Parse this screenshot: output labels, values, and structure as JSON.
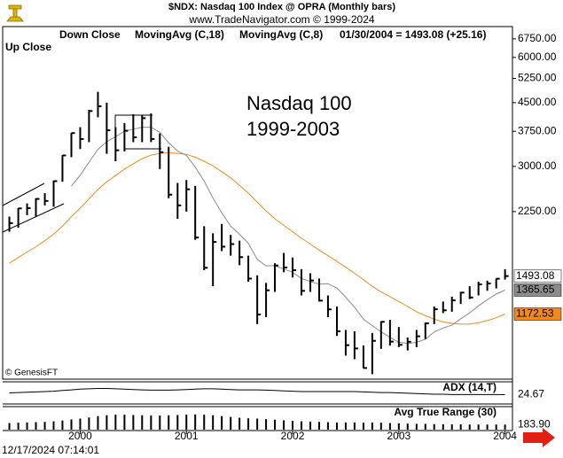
{
  "chart_data": {
    "type": "hlc",
    "title": "$NDX:  Nasdaq 100 Index @ OPRA  (Monthly bars)",
    "subtitle": "www.TradeNavigator.com © 1999-2024",
    "header_info": "01/30/2004 = 1493.08 (+25.16)",
    "down_label": "Down Close",
    "up_label": "Up Close",
    "annotations": [
      "Nasdaq 100",
      "1999-2003"
    ],
    "source": "© GenesisFT",
    "timestamp": "12/17/2024 07:14:01",
    "log_scale": true,
    "bar_color": "#000000",
    "x": [
      1999.333,
      1999.417,
      1999.5,
      1999.583,
      1999.667,
      1999.75,
      1999.833,
      1999.917,
      2000,
      2000.083,
      2000.167,
      2000.25,
      2000.333,
      2000.417,
      2000.5,
      2000.583,
      2000.667,
      2000.75,
      2000.833,
      2000.917,
      2001,
      2001.083,
      2001.167,
      2001.25,
      2001.333,
      2001.417,
      2001.5,
      2001.583,
      2001.667,
      2001.75,
      2001.833,
      2001.917,
      2002,
      2002.083,
      2002.167,
      2002.25,
      2002.333,
      2002.417,
      2002.5,
      2002.583,
      2002.667,
      2002.75,
      2002.833,
      2002.917,
      2003,
      2003.083,
      2003.167,
      2003.25,
      2003.333,
      2003.417,
      2003.5,
      2003.583,
      2003.667,
      2003.75,
      2003.833,
      2003.917,
      2004
    ],
    "high": [
      2180,
      2300,
      2370,
      2450,
      2530,
      2740,
      3220,
      3710,
      3850,
      4300,
      4820,
      4500,
      3850,
      3950,
      4180,
      4150,
      4200,
      3700,
      3400,
      2700,
      2750,
      2650,
      2050,
      1960,
      2080,
      1940,
      1870,
      1700,
      1500,
      1430,
      1620,
      1730,
      1680,
      1560,
      1520,
      1470,
      1320,
      1230,
      1060,
      1050,
      960,
      1040,
      1120,
      1130,
      1080,
      1010,
      1060,
      1110,
      1230,
      1270,
      1310,
      1350,
      1400,
      1440,
      1450,
      1470,
      1560
    ],
    "low": [
      1980,
      2030,
      2200,
      2180,
      2340,
      2320,
      2720,
      3180,
      3350,
      3500,
      4100,
      3250,
      3100,
      3300,
      3500,
      3500,
      3500,
      2950,
      2450,
      2150,
      2250,
      1880,
      1550,
      1400,
      1750,
      1700,
      1600,
      1440,
      1100,
      1150,
      1350,
      1530,
      1480,
      1320,
      1350,
      1270,
      1150,
      1020,
      900,
      880,
      830,
      800,
      940,
      960,
      950,
      930,
      950,
      1000,
      1100,
      1180,
      1190,
      1250,
      1290,
      1320,
      1360,
      1380,
      1460
    ],
    "close": [
      2091,
      2296,
      2300,
      2439,
      2408,
      2731,
      3216,
      3708,
      3570,
      4266,
      4398,
      3774,
      3324,
      3763,
      3609,
      4077,
      3571,
      3283,
      2506,
      2341,
      2593,
      1908,
      1574,
      1855,
      1800,
      1830,
      1684,
      1469,
      1169,
      1364,
      1597,
      1577,
      1550,
      1359,
      1452,
      1277,
      1208,
      1051,
      962,
      942,
      832,
      989,
      1116,
      984,
      964,
      983,
      1018,
      1106,
      1209,
      1201,
      1280,
      1344,
      1303,
      1416,
      1424,
      1468,
      1493.08
    ],
    "series": [
      {
        "name": "MovingAvg (C,18)",
        "color": "#f0891e",
        "label_text_color": "#ffffff",
        "values": [
          1620,
          1680,
          1740,
          1800,
          1870,
          1950,
          2050,
          2180,
          2300,
          2440,
          2590,
          2720,
          2830,
          2950,
          3050,
          3150,
          3220,
          3260,
          3270,
          3260,
          3240,
          3180,
          3100,
          3010,
          2900,
          2790,
          2660,
          2530,
          2390,
          2260,
          2150,
          2060,
          1980,
          1900,
          1830,
          1760,
          1700,
          1640,
          1580,
          1520,
          1460,
          1400,
          1350,
          1310,
          1270,
          1230,
          1190,
          1160,
          1135,
          1115,
          1105,
          1100,
          1100,
          1110,
          1125,
          1145,
          1172.53
        ]
      },
      {
        "name": "MovingAvg (C,8)",
        "color": "#8c8c8c",
        "label_text_color": "#000000",
        "values": [
          null,
          null,
          null,
          null,
          null,
          null,
          null,
          2649,
          2834,
          3080,
          3342,
          3509,
          3623,
          3752,
          3802,
          3848,
          3848,
          3725,
          3488,
          3309,
          3218,
          2986,
          2732,
          2454,
          2233,
          2051,
          1948,
          1839,
          1661,
          1593,
          1596,
          1561,
          1530,
          1471,
          1442,
          1418,
          1423,
          1384,
          1305,
          1225,
          1135,
          1089,
          1047,
          1011,
          980,
          972,
          979,
          999,
          1046,
          1073,
          1093,
          1138,
          1181,
          1235,
          1285,
          1331,
          1365.65
        ]
      }
    ],
    "xlim": [
      1999.27,
      2004.07
    ],
    "xticks": [
      2000,
      2001,
      2002,
      2003,
      2004
    ],
    "ylim": [
      775,
      7300
    ],
    "yticks": [
      {
        "value": 6750,
        "label": "6750.00"
      },
      {
        "value": 6000,
        "label": "6000.00"
      },
      {
        "value": 5250,
        "label": "5250.00"
      },
      {
        "value": 4500,
        "label": "4500.00"
      },
      {
        "value": 3750,
        "label": "3750.00"
      },
      {
        "value": 3000,
        "label": "3000.00"
      },
      {
        "value": 2250,
        "label": "2250.00"
      }
    ],
    "panels": [
      {
        "title": "ADX (14,T)",
        "type": "line",
        "color": "#000000",
        "ylim": [
          0,
          60
        ],
        "values": [
          30,
          31,
          32,
          33,
          34,
          35,
          37,
          39,
          41,
          42,
          43,
          43,
          42,
          41,
          40,
          39,
          38,
          38,
          38,
          39,
          40,
          41,
          42,
          42,
          41,
          40,
          39,
          39,
          39,
          38,
          37,
          36,
          35,
          34,
          34,
          34,
          34,
          34,
          34,
          34,
          33,
          32,
          31,
          31,
          30,
          29,
          28,
          27,
          26,
          26,
          25,
          25,
          25,
          25,
          25,
          25,
          24.67
        ]
      },
      {
        "title": "Avg True Range (30)",
        "type": "bar",
        "color": "#000000",
        "ylim": [
          0,
          800
        ],
        "values": [
          240,
          250,
          260,
          270,
          280,
          300,
          330,
          370,
          400,
          440,
          490,
          520,
          540,
          540,
          530,
          520,
          510,
          510,
          520,
          530,
          540,
          550,
          540,
          520,
          490,
          460,
          430,
          410,
          400,
          380,
          360,
          340,
          320,
          300,
          290,
          280,
          270,
          260,
          260,
          260,
          250,
          260,
          250,
          240,
          230,
          220,
          210,
          210,
          200,
          195,
          190,
          190,
          185,
          185,
          184,
          184,
          183.9
        ],
        "value_labels": [
          null,
          null,
          null,
          null,
          null,
          null,
          null,
          null,
          null,
          null,
          null,
          null,
          null,
          null,
          null,
          null,
          null,
          null,
          null,
          null,
          null,
          null,
          null,
          null,
          null,
          null,
          null,
          null,
          null,
          null,
          null,
          null,
          null,
          null,
          null,
          null,
          null,
          null,
          null,
          null,
          null,
          null,
          null,
          null,
          null,
          null,
          null,
          null,
          null,
          null,
          null,
          null,
          null,
          null,
          null,
          null,
          "183.90"
        ]
      }
    ]
  }
}
